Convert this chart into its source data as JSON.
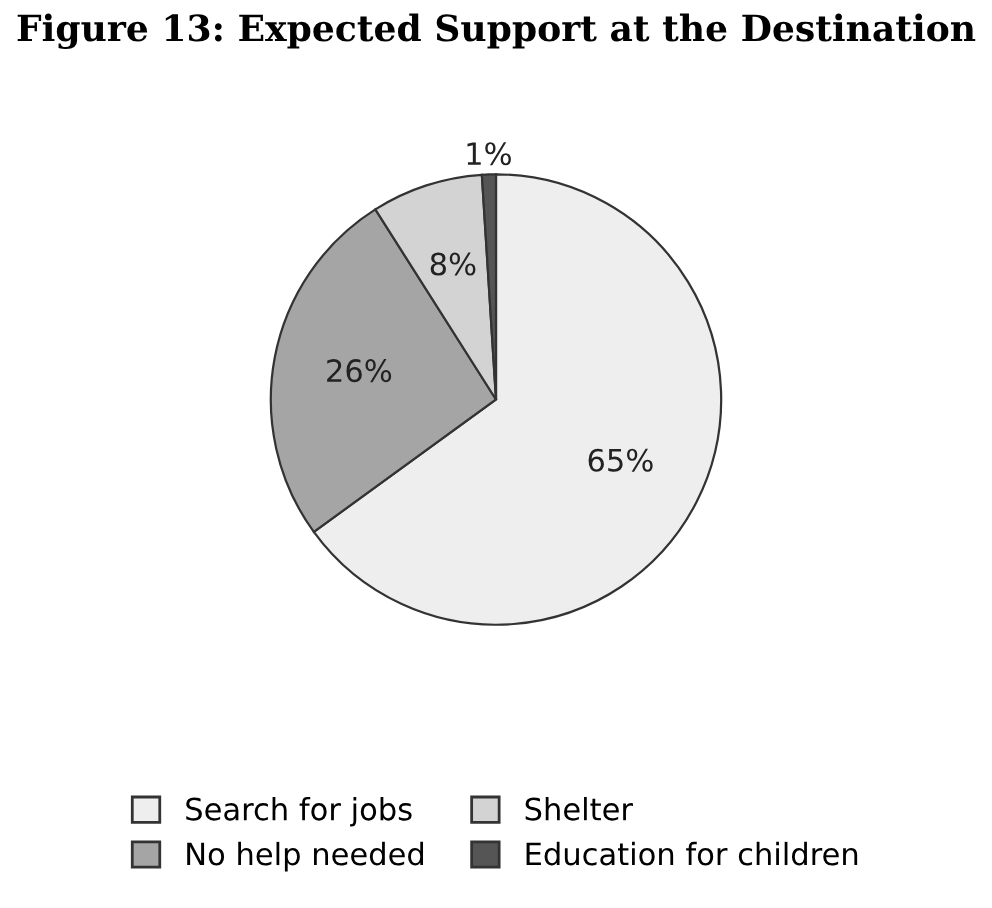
{
  "chart_data": {
    "type": "pie",
    "title": "Figure 13: Expected Support at the Destination",
    "categories": [
      "Search for jobs",
      "No help needed",
      "Shelter",
      "Education for children"
    ],
    "values": [
      65,
      26,
      8,
      1
    ],
    "colors": [
      "#eeeeee",
      "#a5a5a5",
      "#d3d3d3",
      "#555555"
    ],
    "value_labels": [
      "65%",
      "26%",
      "8%",
      "1%"
    ],
    "legend": "bottom"
  }
}
